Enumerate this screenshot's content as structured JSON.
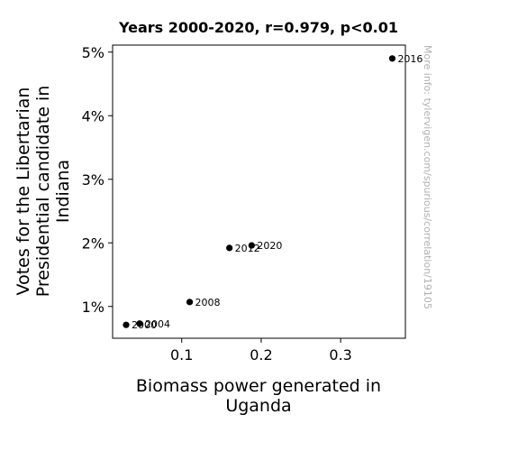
{
  "chart_data": {
    "type": "scatter",
    "title": "Years 2000-2020, r=0.979, p<0.01",
    "xlabel_lines": [
      "Biomass power generated in",
      "Uganda"
    ],
    "ylabel_lines": [
      "Votes for the Libertarian",
      "Presidential candidate in",
      "Indiana"
    ],
    "watermark": "More info: tylervigen.com/spurious/correlation/19105",
    "xlim": [
      0.013,
      0.3815
    ],
    "ylim": [
      0.005,
      0.0511
    ],
    "x_ticks": [
      {
        "value": 0.1,
        "label": "0.1"
      },
      {
        "value": 0.2,
        "label": "0.2"
      },
      {
        "value": 0.3,
        "label": "0.3"
      }
    ],
    "y_ticks": [
      {
        "value": 0.01,
        "label": "1%"
      },
      {
        "value": 0.02,
        "label": "2%"
      },
      {
        "value": 0.03,
        "label": "3%"
      },
      {
        "value": 0.04,
        "label": "4%"
      },
      {
        "value": 0.05,
        "label": "5%"
      }
    ],
    "points": [
      {
        "label": "2000",
        "x": 0.03,
        "y": 0.0071
      },
      {
        "label": "2004",
        "x": 0.047,
        "y": 0.0073
      },
      {
        "label": "2008",
        "x": 0.11,
        "y": 0.0107
      },
      {
        "label": "2012",
        "x": 0.16,
        "y": 0.0192
      },
      {
        "label": "2016",
        "x": 0.365,
        "y": 0.049
      },
      {
        "label": "2020",
        "x": 0.188,
        "y": 0.0196
      }
    ],
    "grid": false,
    "legend": "none",
    "marker_color": "#000000"
  }
}
